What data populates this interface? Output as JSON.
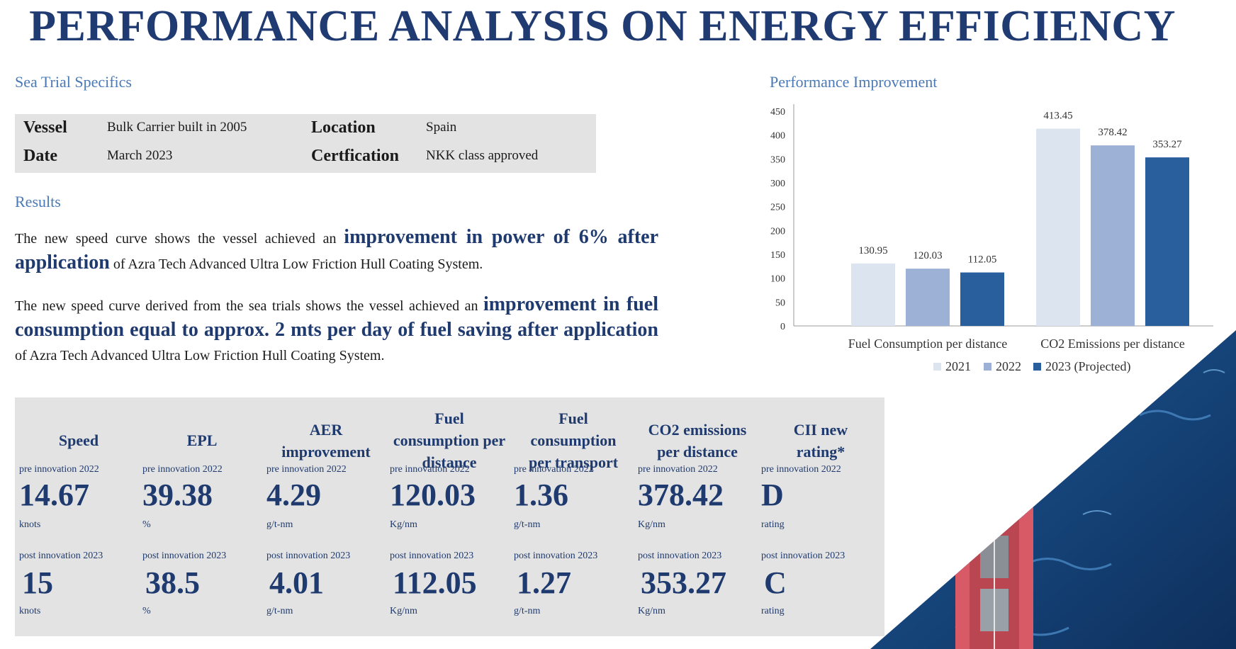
{
  "title": "PERFORMANCE ANALYSIS ON ENERGY EFFICIENCY",
  "sea_trial": {
    "heading": "Sea Trial Specifics",
    "vessel_label": "Vessel",
    "vessel_value": "Bulk Carrier built in 2005",
    "location_label": "Location",
    "location_value": "Spain",
    "date_label": "Date",
    "date_value": "March 2023",
    "certification_label": "Certfication",
    "certification_value": "NKK class approved"
  },
  "results": {
    "heading": "Results",
    "p1_pre": "The new speed curve shows the vessel achieved an ",
    "p1_hl": "improvement in power of 6% after application",
    "p1_post": " of Azra Tech Advanced Ultra Low Friction Hull Coating System.",
    "p2_pre": "The new speed curve derived from the sea trials shows the vessel achieved an ",
    "p2_hl": "improvement in fuel consumption equal to approx. 2 mts per day of fuel saving after application",
    "p2_post": " of Azra Tech Advanced Ultra Low Friction Hull Coating System."
  },
  "chart_heading": "Performance Improvement",
  "chart_data": {
    "type": "bar",
    "categories": [
      "Fuel Consumption per distance",
      "CO2 Emissions per distance"
    ],
    "series": [
      {
        "name": "2021",
        "values": [
          130.95,
          413.45
        ],
        "color": "#dce4f0"
      },
      {
        "name": "2022",
        "values": [
          120.03,
          378.42
        ],
        "color": "#9db1d6"
      },
      {
        "name": "2023 (Projected)",
        "values": [
          112.05,
          353.27
        ],
        "color": "#2a5f9e"
      }
    ],
    "data_labels": [
      [
        "130.95",
        "413.45"
      ],
      [
        "120.03",
        "378.42"
      ],
      [
        "112.05",
        "353.27"
      ]
    ],
    "ylim": [
      0,
      450
    ],
    "yticks": [
      "0",
      "50",
      "100",
      "150",
      "200",
      "250",
      "300",
      "350",
      "400",
      "450"
    ],
    "grid": false,
    "legend": "bottom"
  },
  "cards": [
    {
      "title_lines": [
        "Speed"
      ],
      "pre_label": "pre innovation 2022",
      "pre_value": "14.67",
      "pre_unit": "knots",
      "post_label": "post innovation 2023",
      "post_value": "15",
      "post_unit": "knots"
    },
    {
      "title_lines": [
        "EPL"
      ],
      "pre_label": "pre innovation 2022",
      "pre_value": "39.38",
      "pre_unit": "%",
      "post_label": "post innovation 2023",
      "post_value": "38.5",
      "post_unit": "%"
    },
    {
      "title_lines": [
        "AER",
        "improvement"
      ],
      "pre_label": "pre innovation 2022",
      "pre_value": "4.29",
      "pre_unit": "g/t-nm",
      "post_label": "post innovation 2023",
      "post_value": "4.01",
      "post_unit": "g/t-nm"
    },
    {
      "title_lines": [
        "Fuel",
        "consumption per",
        "distance"
      ],
      "pre_label": "pre innovation 2022",
      "pre_value": "120.03",
      "pre_unit": "Kg/nm",
      "post_label": "post innovation 2023",
      "post_value": "112.05",
      "post_unit": "Kg/nm"
    },
    {
      "title_lines": [
        "Fuel",
        "consumption",
        "per transport"
      ],
      "pre_label": "pre innovation 2022",
      "pre_value": "1.36",
      "pre_unit": "g/t-nm",
      "post_label": "post innovation 2023",
      "post_value": "1.27",
      "post_unit": "g/t-nm"
    },
    {
      "title_lines": [
        "CO2 emissions",
        "per distance"
      ],
      "pre_label": "pre innovation 2022",
      "pre_value": "378.42",
      "pre_unit": "Kg/nm",
      "post_label": "post innovation 2023",
      "post_value": "353.27",
      "post_unit": "Kg/nm"
    },
    {
      "title_lines": [
        "CII new",
        "rating*"
      ],
      "pre_label": "pre innovation 2022",
      "pre_value": "D",
      "pre_unit": "rating",
      "post_label": "post innovation 2023",
      "post_value": "C",
      "post_unit": "rating"
    }
  ],
  "colors": {
    "navy": "#1f3a6e",
    "accent": "#4a79b5",
    "card_bg": "#e3e3e3",
    "sea": "#16417a",
    "hull": "#d85a66"
  }
}
